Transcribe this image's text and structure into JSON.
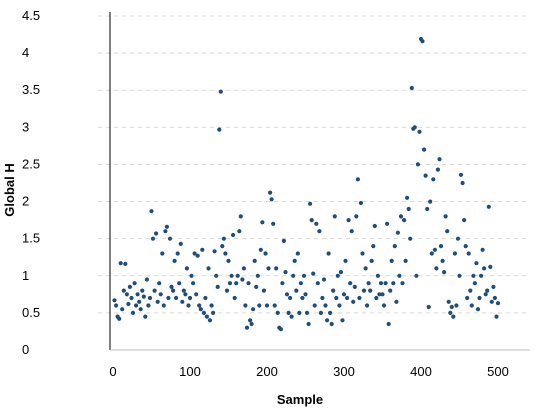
{
  "chart_data": {
    "type": "scatter",
    "title": "",
    "xlabel": "Sample",
    "ylabel": "Global H",
    "xlim": [
      -15,
      540
    ],
    "ylim": [
      0,
      4.5
    ],
    "x_ticks": [
      0,
      100,
      200,
      300,
      400,
      500
    ],
    "y_ticks": [
      0,
      0.5,
      1,
      1.5,
      2,
      2.5,
      3,
      3.5,
      4,
      4.5
    ],
    "x_tick_labels": [
      "0",
      "100",
      "200",
      "300",
      "400",
      "500"
    ],
    "y_tick_labels": [
      "0",
      "0.5",
      "1",
      "1.5",
      "2",
      "2.5",
      "3",
      "3.5",
      "4",
      "4.5"
    ],
    "grid": "horizontal-dashed",
    "legend": "none",
    "marker_color": "#1f4e79",
    "series": [
      {
        "points": [
          [
            2,
            0.67
          ],
          [
            4,
            0.6
          ],
          [
            6,
            0.45
          ],
          [
            8,
            0.42
          ],
          [
            10,
            1.17
          ],
          [
            12,
            0.55
          ],
          [
            14,
            0.8
          ],
          [
            16,
            1.16
          ],
          [
            18,
            0.75
          ],
          [
            20,
            0.62
          ],
          [
            22,
            0.85
          ],
          [
            24,
            0.7
          ],
          [
            26,
            0.5
          ],
          [
            28,
            0.9
          ],
          [
            30,
            0.6
          ],
          [
            32,
            0.75
          ],
          [
            34,
            0.65
          ],
          [
            36,
            0.55
          ],
          [
            38,
            0.8
          ],
          [
            40,
            0.72
          ],
          [
            42,
            0.45
          ],
          [
            44,
            0.95
          ],
          [
            46,
            0.6
          ],
          [
            48,
            0.7
          ],
          [
            50,
            1.87
          ],
          [
            52,
            1.5
          ],
          [
            54,
            0.8
          ],
          [
            56,
            1.57
          ],
          [
            58,
            0.65
          ],
          [
            60,
            0.9
          ],
          [
            62,
            0.75
          ],
          [
            64,
            1.3
          ],
          [
            66,
            0.6
          ],
          [
            68,
            1.6
          ],
          [
            70,
            1.66
          ],
          [
            72,
            0.7
          ],
          [
            74,
            1.5
          ],
          [
            76,
            0.85
          ],
          [
            78,
            0.8
          ],
          [
            80,
            1.2
          ],
          [
            82,
            0.7
          ],
          [
            84,
            1.3
          ],
          [
            86,
            0.9
          ],
          [
            88,
            1.43
          ],
          [
            90,
            0.65
          ],
          [
            92,
            0.8
          ],
          [
            94,
            0.75
          ],
          [
            96,
            1.1
          ],
          [
            98,
            0.6
          ],
          [
            100,
            0.7
          ],
          [
            102,
            1.0
          ],
          [
            104,
            0.9
          ],
          [
            106,
            1.3
          ],
          [
            108,
            0.75
          ],
          [
            110,
            1.27
          ],
          [
            112,
            0.6
          ],
          [
            114,
            0.55
          ],
          [
            116,
            1.35
          ],
          [
            118,
            0.5
          ],
          [
            120,
            0.7
          ],
          [
            122,
            0.45
          ],
          [
            124,
            1.1
          ],
          [
            126,
            0.4
          ],
          [
            128,
            0.6
          ],
          [
            130,
            0.5
          ],
          [
            132,
            1.33
          ],
          [
            134,
            1.0
          ],
          [
            136,
            0.85
          ],
          [
            138,
            2.97
          ],
          [
            140,
            3.48
          ],
          [
            142,
            1.4
          ],
          [
            144,
            1.5
          ],
          [
            146,
            1.3
          ],
          [
            148,
            0.8
          ],
          [
            150,
            1.2
          ],
          [
            152,
            0.9
          ],
          [
            154,
            1.0
          ],
          [
            156,
            1.55
          ],
          [
            158,
            0.7
          ],
          [
            160,
            0.9
          ],
          [
            162,
            1.0
          ],
          [
            164,
            1.6
          ],
          [
            166,
            1.8
          ],
          [
            168,
            0.95
          ],
          [
            170,
            1.1
          ],
          [
            172,
            0.6
          ],
          [
            174,
            0.3
          ],
          [
            176,
            0.9
          ],
          [
            178,
            0.4
          ],
          [
            180,
            0.35
          ],
          [
            182,
            0.55
          ],
          [
            184,
            1.2
          ],
          [
            186,
            0.85
          ],
          [
            188,
            1.0
          ],
          [
            190,
            0.6
          ],
          [
            192,
            1.35
          ],
          [
            194,
            1.72
          ],
          [
            196,
            0.8
          ],
          [
            198,
            1.3
          ],
          [
            200,
            0.6
          ],
          [
            202,
            1.1
          ],
          [
            204,
            2.12
          ],
          [
            206,
            2.03
          ],
          [
            208,
            1.7
          ],
          [
            210,
            0.6
          ],
          [
            212,
            1.1
          ],
          [
            214,
            0.5
          ],
          [
            216,
            0.3
          ],
          [
            218,
            0.28
          ],
          [
            220,
            0.9
          ],
          [
            222,
            1.47
          ],
          [
            224,
            1.05
          ],
          [
            226,
            0.75
          ],
          [
            228,
            0.5
          ],
          [
            230,
            0.7
          ],
          [
            232,
            0.45
          ],
          [
            234,
            1.0
          ],
          [
            236,
            1.2
          ],
          [
            238,
            0.8
          ],
          [
            240,
            1.3
          ],
          [
            242,
            0.5
          ],
          [
            244,
            0.9
          ],
          [
            246,
            0.7
          ],
          [
            248,
            1.0
          ],
          [
            250,
            0.75
          ],
          [
            252,
            0.5
          ],
          [
            254,
            0.35
          ],
          [
            256,
            1.97
          ],
          [
            258,
            1.75
          ],
          [
            260,
            1.03
          ],
          [
            262,
            0.6
          ],
          [
            264,
            1.7
          ],
          [
            266,
            0.9
          ],
          [
            268,
            1.6
          ],
          [
            270,
            0.5
          ],
          [
            272,
            0.7
          ],
          [
            274,
            0.95
          ],
          [
            276,
            0.6
          ],
          [
            278,
            0.4
          ],
          [
            280,
            1.3
          ],
          [
            282,
            0.5
          ],
          [
            284,
            0.35
          ],
          [
            286,
            0.8
          ],
          [
            288,
            1.8
          ],
          [
            290,
            0.7
          ],
          [
            292,
            1.0
          ],
          [
            294,
            0.6
          ],
          [
            296,
            1.05
          ],
          [
            298,
            0.4
          ],
          [
            300,
            0.75
          ],
          [
            302,
            1.2
          ],
          [
            304,
            0.7
          ],
          [
            306,
            1.75
          ],
          [
            308,
            0.9
          ],
          [
            310,
            1.6
          ],
          [
            312,
            0.65
          ],
          [
            314,
            0.85
          ],
          [
            316,
            1.8
          ],
          [
            318,
            2.3
          ],
          [
            320,
            0.7
          ],
          [
            322,
            1.98
          ],
          [
            324,
            1.3
          ],
          [
            326,
            0.8
          ],
          [
            328,
            1.1
          ],
          [
            330,
            0.6
          ],
          [
            332,
            0.9
          ],
          [
            334,
            0.8
          ],
          [
            336,
            1.2
          ],
          [
            338,
            1.4
          ],
          [
            340,
            1.67
          ],
          [
            342,
            0.7
          ],
          [
            344,
            1.0
          ],
          [
            346,
            0.75
          ],
          [
            348,
            0.9
          ],
          [
            350,
            0.75
          ],
          [
            352,
            0.6
          ],
          [
            354,
            0.9
          ],
          [
            356,
            1.7
          ],
          [
            358,
            0.35
          ],
          [
            360,
            0.8
          ],
          [
            362,
            1.2
          ],
          [
            364,
            0.9
          ],
          [
            366,
            1.4
          ],
          [
            368,
            0.65
          ],
          [
            370,
            1.58
          ],
          [
            372,
            1.0
          ],
          [
            374,
            1.8
          ],
          [
            376,
            0.9
          ],
          [
            378,
            1.75
          ],
          [
            380,
            1.2
          ],
          [
            382,
            2.05
          ],
          [
            384,
            1.9
          ],
          [
            386,
            1.5
          ],
          [
            388,
            3.53
          ],
          [
            390,
            2.98
          ],
          [
            392,
            3.0
          ],
          [
            394,
            1.0
          ],
          [
            396,
            2.5
          ],
          [
            398,
            2.94
          ],
          [
            400,
            4.19
          ],
          [
            402,
            4.16
          ],
          [
            404,
            2.7
          ],
          [
            406,
            2.35
          ],
          [
            408,
            1.9
          ],
          [
            410,
            0.58
          ],
          [
            412,
            2.0
          ],
          [
            414,
            1.3
          ],
          [
            416,
            2.3
          ],
          [
            418,
            1.35
          ],
          [
            420,
            1.1
          ],
          [
            422,
            2.43
          ],
          [
            424,
            2.57
          ],
          [
            426,
            1.4
          ],
          [
            428,
            1.2
          ],
          [
            430,
            1.05
          ],
          [
            432,
            1.8
          ],
          [
            434,
            1.6
          ],
          [
            436,
            0.65
          ],
          [
            438,
            0.5
          ],
          [
            440,
            0.58
          ],
          [
            442,
            0.45
          ],
          [
            444,
            1.3
          ],
          [
            446,
            0.6
          ],
          [
            448,
            1.5
          ],
          [
            450,
            1.0
          ],
          [
            452,
            2.36
          ],
          [
            454,
            2.25
          ],
          [
            456,
            1.75
          ],
          [
            458,
            1.4
          ],
          [
            460,
            0.7
          ],
          [
            462,
            1.3
          ],
          [
            464,
            0.8
          ],
          [
            466,
            0.6
          ],
          [
            468,
            1.0
          ],
          [
            470,
            0.9
          ],
          [
            472,
            1.17
          ],
          [
            474,
            0.55
          ],
          [
            476,
            0.7
          ],
          [
            478,
            1.0
          ],
          [
            480,
            1.35
          ],
          [
            482,
            1.1
          ],
          [
            484,
            0.75
          ],
          [
            486,
            0.8
          ],
          [
            488,
            1.93
          ],
          [
            490,
            1.12
          ],
          [
            492,
            0.65
          ],
          [
            494,
            0.85
          ],
          [
            496,
            0.7
          ],
          [
            498,
            0.45
          ],
          [
            500,
            0.63
          ]
        ]
      }
    ]
  }
}
